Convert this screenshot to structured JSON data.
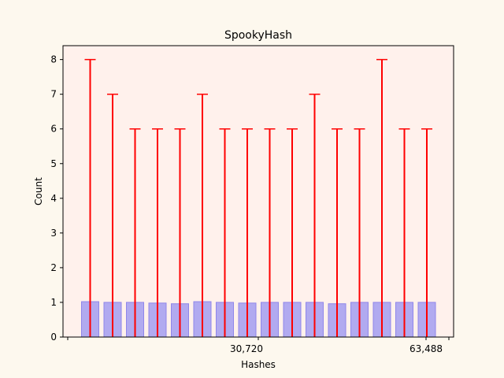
{
  "chart_data": {
    "type": "bar",
    "title": "SpookyHash",
    "xlabel": "Hashes",
    "ylabel": "Count",
    "ylim": [
      0,
      8.4
    ],
    "yticks": [
      0,
      1,
      2,
      3,
      4,
      5,
      6,
      7,
      8
    ],
    "xtick_labels": [
      "30,720",
      "63,488"
    ],
    "grid": false,
    "colors": {
      "background": "#fdf8ee",
      "plot_background": "#fff1ec",
      "bar_fill": "#b1aaf0",
      "bar_edge": "#8f86ea",
      "error_bar": "#ff0000"
    },
    "bars": [
      {
        "value": 1.02,
        "error_max": 8
      },
      {
        "value": 1.0,
        "error_max": 7
      },
      {
        "value": 1.0,
        "error_max": 6
      },
      {
        "value": 0.98,
        "error_max": 6
      },
      {
        "value": 0.96,
        "error_max": 6
      },
      {
        "value": 1.02,
        "error_max": 7
      },
      {
        "value": 1.0,
        "error_max": 6
      },
      {
        "value": 0.98,
        "error_max": 6
      },
      {
        "value": 1.0,
        "error_max": 6
      },
      {
        "value": 1.0,
        "error_max": 6
      },
      {
        "value": 1.0,
        "error_max": 7
      },
      {
        "value": 0.96,
        "error_max": 6
      },
      {
        "value": 1.0,
        "error_max": 6
      },
      {
        "value": 1.0,
        "error_max": 8
      },
      {
        "value": 1.0,
        "error_max": 6
      },
      {
        "value": 1.0,
        "error_max": 6
      }
    ]
  }
}
